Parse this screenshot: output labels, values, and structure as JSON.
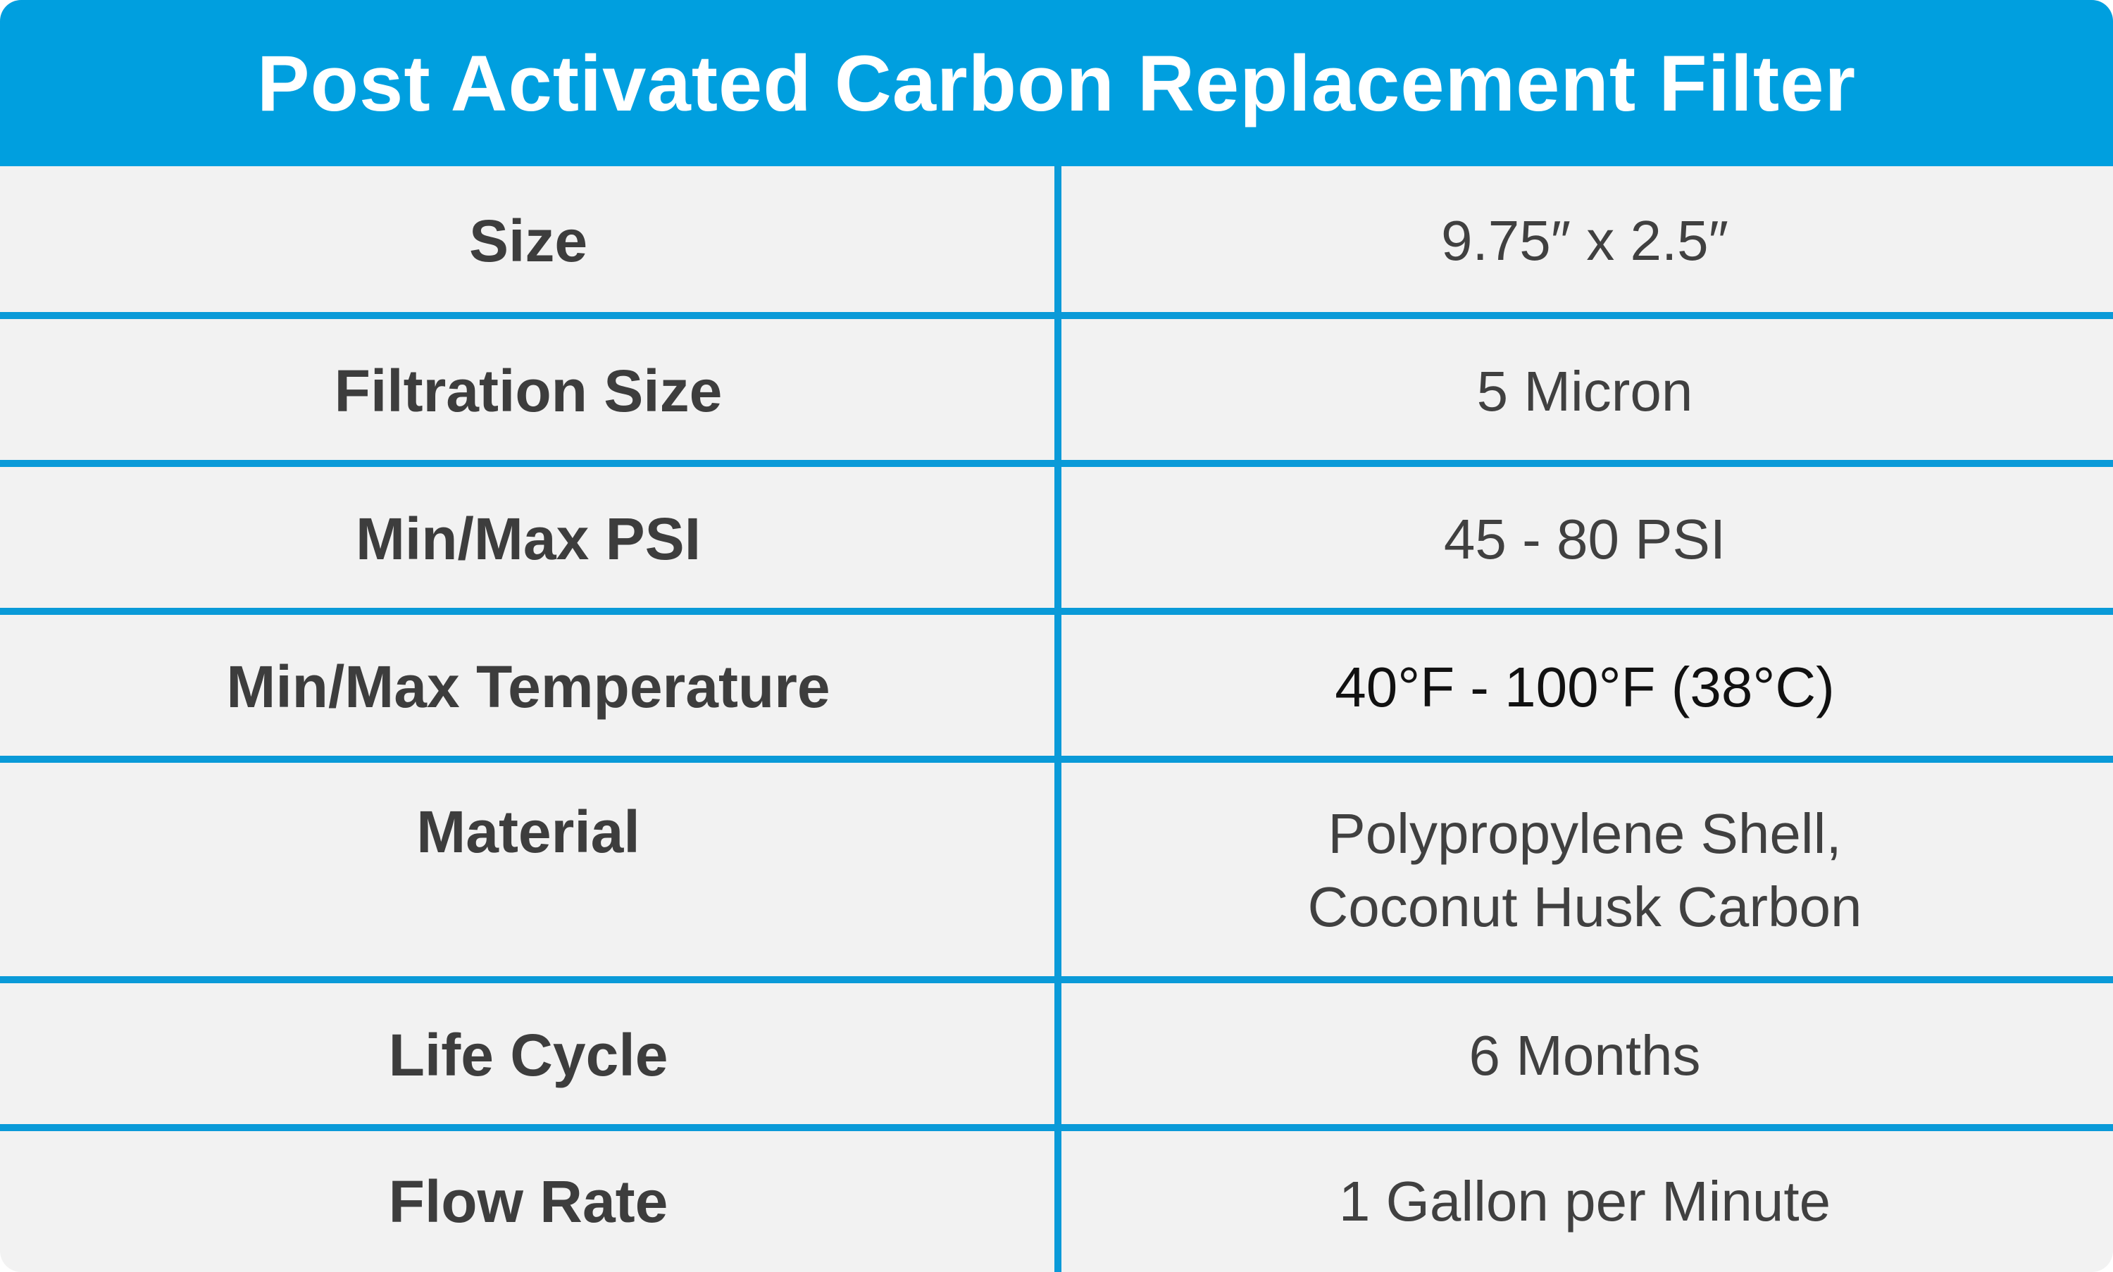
{
  "title": "Post Activated Carbon Replacement Filter",
  "colors": {
    "header_bg": "#009fdf",
    "grid_line": "#0a9ad8",
    "row_bg": "#f2f2f2",
    "label_text": "#3d3d3d"
  },
  "rows": [
    {
      "label": "Size",
      "value": "9.75″ x 2.5″"
    },
    {
      "label": "Filtration Size",
      "value": "5 Micron"
    },
    {
      "label": "Min/Max PSI",
      "value": "45 - 80 PSI"
    },
    {
      "label": "Min/Max Temperature",
      "value": "40°F - 100°F (38°C)"
    },
    {
      "label": "Material",
      "value_line1": "Polypropylene Shell,",
      "value_line2": "Coconut Husk Carbon"
    },
    {
      "label": "Life Cycle",
      "value": "6 Months"
    },
    {
      "label": "Flow Rate",
      "value": "1 Gallon per Minute"
    }
  ]
}
